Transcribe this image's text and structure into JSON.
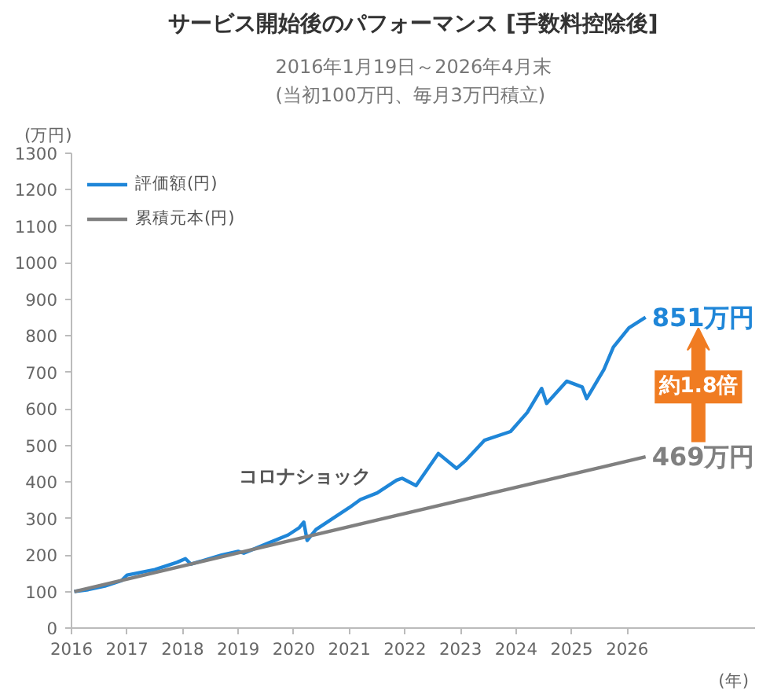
{
  "chart_data": {
    "type": "line",
    "title": "サービス開始後のパフォーマンス [手数料控除後]",
    "subtitle": "2016年1月19日～2026年4月末\n(当初100万円、毎月3万円積立)",
    "xlabel": "(年)",
    "ylabel": "(万円)",
    "series": [
      {
        "name": "評価額(円)",
        "color": "#1f86d8",
        "x": [
          2016.05,
          2016.3,
          2016.6,
          2016.9,
          2017.0,
          2017.5,
          2017.9,
          2018.05,
          2018.15,
          2018.7,
          2019.0,
          2019.1,
          2019.5,
          2019.9,
          2020.1,
          2020.18,
          2020.24,
          2020.4,
          2020.7,
          2021.0,
          2021.2,
          2021.5,
          2021.85,
          2021.95,
          2022.2,
          2022.6,
          2022.93,
          2023.1,
          2023.43,
          2023.9,
          2024.2,
          2024.46,
          2024.55,
          2024.91,
          2025.19,
          2025.27,
          2025.58,
          2025.75,
          2026.03,
          2026.33
        ],
        "values": [
          100,
          105,
          115,
          130,
          145,
          160,
          180,
          190,
          175,
          200,
          210,
          205,
          230,
          255,
          275,
          290,
          240,
          270,
          300,
          330,
          352,
          370,
          405,
          410,
          390,
          478,
          437,
          460,
          514,
          538,
          590,
          656,
          615,
          676,
          660,
          628,
          708,
          769,
          822,
          851
        ],
        "value_labels": [
          null,
          null,
          null,
          null,
          null,
          null,
          null,
          null,
          null,
          null,
          null,
          null,
          null,
          null,
          null,
          null,
          null,
          null,
          null,
          null,
          null,
          null,
          null,
          null,
          null,
          null,
          null,
          null,
          null,
          null,
          null,
          null,
          null,
          null,
          null,
          null,
          null,
          null,
          null,
          "851万円"
        ]
      },
      {
        "name": "累積元本(円)",
        "color": "#808080",
        "x": [
          2016.05,
          2026.33
        ],
        "values": [
          100,
          469
        ],
        "value_labels": [
          null,
          "469万円"
        ]
      }
    ],
    "xlim": [
      2016,
      2028.3
    ],
    "xticks": [
      2016,
      2017,
      2018,
      2019,
      2020,
      2021,
      2022,
      2023,
      2024,
      2025,
      2026
    ],
    "ylim": [
      0,
      1300
    ],
    "yticks": [
      0,
      100,
      200,
      300,
      400,
      500,
      600,
      700,
      800,
      900,
      1000,
      1100,
      1200,
      1300
    ],
    "annotations": [
      {
        "text": "コロナショック",
        "x": 2020.2,
        "y": 290
      },
      "約1.8倍"
    ],
    "grid": false,
    "legend": "top left",
    "line_style": "solid",
    "marker": "none"
  }
}
